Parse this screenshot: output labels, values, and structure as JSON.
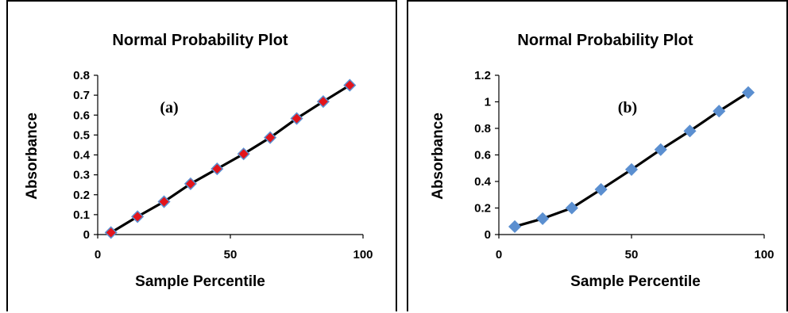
{
  "chart_data": [
    {
      "type": "line",
      "title": "Normal Probability Plot",
      "xlabel": "Sample Percentile",
      "ylabel": "Absorbance",
      "annotation": "(a)",
      "xlim": [
        0,
        100
      ],
      "ylim": [
        0,
        0.8
      ],
      "xticks": [
        "0",
        "50",
        "100"
      ],
      "yticks": [
        "0",
        "0.1",
        "0.2",
        "0.3",
        "0.4",
        "0.5",
        "0.6",
        "0.7",
        "0.8"
      ],
      "x": [
        5,
        15,
        25,
        35,
        45,
        55,
        65,
        75,
        85,
        95
      ],
      "y": [
        0.01,
        0.09,
        0.165,
        0.255,
        0.33,
        0.405,
        0.487,
        0.583,
        0.668,
        0.75
      ],
      "line_color": "#000000",
      "marker_fill": "#e3141b",
      "marker_stroke": "#5b8fd0",
      "grid": false,
      "legend": "none"
    },
    {
      "type": "line",
      "title": "Normal Probability Plot",
      "xlabel": "Sample Percentile",
      "ylabel": "Absorbance",
      "annotation": "(b)",
      "xlim": [
        0,
        100
      ],
      "ylim": [
        0,
        1.2
      ],
      "xticks": [
        "0",
        "50",
        "100"
      ],
      "yticks": [
        "0",
        "0.2",
        "0.4",
        "0.6",
        "0.8",
        "1",
        "1.2"
      ],
      "x": [
        6,
        16.5,
        27.5,
        38.5,
        50,
        61,
        72,
        83,
        94
      ],
      "y": [
        0.06,
        0.12,
        0.2,
        0.34,
        0.49,
        0.64,
        0.78,
        0.93,
        1.07
      ],
      "line_color": "#000000",
      "marker_fill": "#5b8fd0",
      "marker_stroke": "#5b8fd0",
      "grid": false,
      "legend": "none"
    }
  ]
}
